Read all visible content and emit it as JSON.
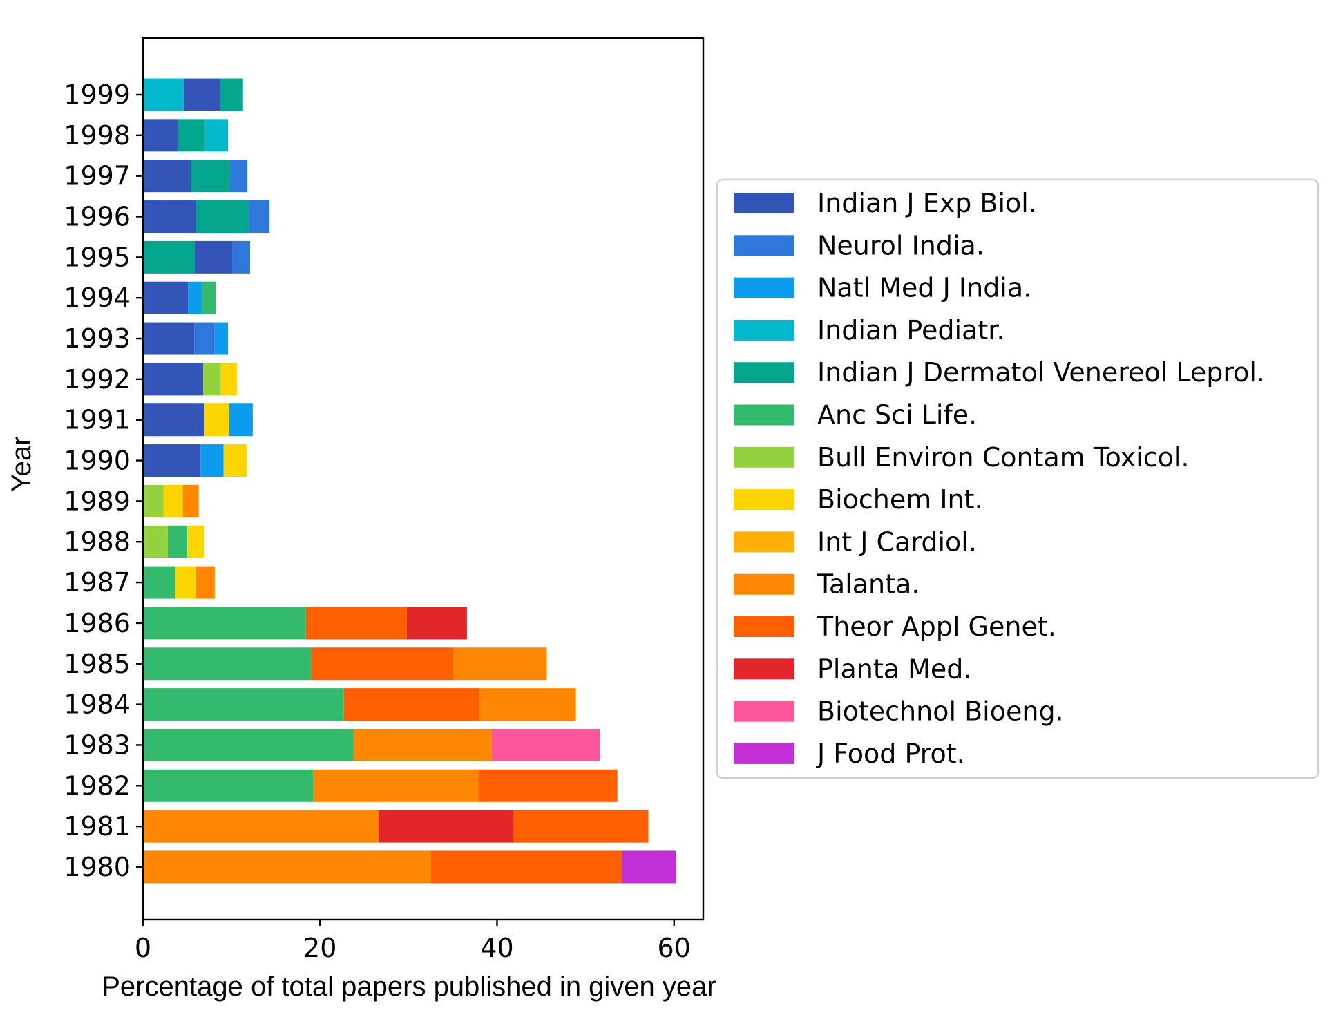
{
  "chart_data": {
    "type": "bar",
    "orientation": "horizontal",
    "stacked": true,
    "xlabel": "Percentage of total papers published in given year",
    "ylabel": "Year",
    "xlim": [
      0,
      63.3
    ],
    "xticks": [
      0,
      20,
      40,
      60
    ],
    "grid": false,
    "legend_position": "right",
    "journals": [
      {
        "name": "Indian J Exp Biol.",
        "color": "#3355b8"
      },
      {
        "name": "Neurol India.",
        "color": "#2f77db"
      },
      {
        "name": "Natl Med J India.",
        "color": "#0b9ced"
      },
      {
        "name": "Indian Pediatr.",
        "color": "#03b8cc"
      },
      {
        "name": "Indian J Dermatol Venereol Leprol.",
        "color": "#03a68d"
      },
      {
        "name": "Anc Sci Life.",
        "color": "#34ba6c"
      },
      {
        "name": "Bull Environ Contam Toxicol.",
        "color": "#94d13f"
      },
      {
        "name": "Biochem Int.",
        "color": "#fcd500"
      },
      {
        "name": "Int J Cardiol.",
        "color": "#fdaf03"
      },
      {
        "name": "Talanta.",
        "color": "#fd8603"
      },
      {
        "name": "Theor Appl Genet.",
        "color": "#fe5f03"
      },
      {
        "name": "Planta Med.",
        "color": "#e3262a"
      },
      {
        "name": "Biotechnol Bioeng.",
        "color": "#fe559b"
      },
      {
        "name": "J Food Prot.",
        "color": "#c22fd6"
      }
    ],
    "years": [
      {
        "year": "1999",
        "segments": [
          {
            "journal": 3,
            "value": 4.6
          },
          {
            "journal": 0,
            "value": 4.1
          },
          {
            "journal": 4,
            "value": 2.6
          }
        ]
      },
      {
        "year": "1998",
        "segments": [
          {
            "journal": 0,
            "value": 3.9
          },
          {
            "journal": 4,
            "value": 3.1
          },
          {
            "journal": 3,
            "value": 2.6
          }
        ]
      },
      {
        "year": "1997",
        "segments": [
          {
            "journal": 0,
            "value": 5.4
          },
          {
            "journal": 4,
            "value": 4.4
          },
          {
            "journal": 1,
            "value": 2.0
          }
        ]
      },
      {
        "year": "1996",
        "segments": [
          {
            "journal": 0,
            "value": 6.0
          },
          {
            "journal": 4,
            "value": 5.9
          },
          {
            "journal": 1,
            "value": 2.4
          }
        ]
      },
      {
        "year": "1995",
        "segments": [
          {
            "journal": 4,
            "value": 5.8
          },
          {
            "journal": 0,
            "value": 4.3
          },
          {
            "journal": 1,
            "value": 2.0
          }
        ]
      },
      {
        "year": "1994",
        "segments": [
          {
            "journal": 0,
            "value": 5.1
          },
          {
            "journal": 2,
            "value": 1.5
          },
          {
            "journal": 5,
            "value": 1.6
          }
        ]
      },
      {
        "year": "1993",
        "segments": [
          {
            "journal": 0,
            "value": 5.8
          },
          {
            "journal": 1,
            "value": 2.3
          },
          {
            "journal": 2,
            "value": 1.5
          }
        ]
      },
      {
        "year": "1992",
        "segments": [
          {
            "journal": 0,
            "value": 6.8
          },
          {
            "journal": 6,
            "value": 2.0
          },
          {
            "journal": 7,
            "value": 1.8
          }
        ]
      },
      {
        "year": "1991",
        "segments": [
          {
            "journal": 0,
            "value": 6.9
          },
          {
            "journal": 7,
            "value": 2.8
          },
          {
            "journal": 2,
            "value": 2.7
          }
        ]
      },
      {
        "year": "1990",
        "segments": [
          {
            "journal": 0,
            "value": 6.5
          },
          {
            "journal": 2,
            "value": 2.6
          },
          {
            "journal": 7,
            "value": 2.6
          }
        ]
      },
      {
        "year": "1989",
        "segments": [
          {
            "journal": 6,
            "value": 2.3
          },
          {
            "journal": 7,
            "value": 2.2
          },
          {
            "journal": 9,
            "value": 1.8
          }
        ]
      },
      {
        "year": "1988",
        "segments": [
          {
            "journal": 6,
            "value": 2.8
          },
          {
            "journal": 5,
            "value": 2.2
          },
          {
            "journal": 7,
            "value": 1.9
          }
        ]
      },
      {
        "year": "1987",
        "segments": [
          {
            "journal": 5,
            "value": 3.6
          },
          {
            "journal": 7,
            "value": 2.4
          },
          {
            "journal": 9,
            "value": 2.1
          }
        ]
      },
      {
        "year": "1986",
        "segments": [
          {
            "journal": 5,
            "value": 18.4
          },
          {
            "journal": 10,
            "value": 11.4
          },
          {
            "journal": 11,
            "value": 6.8
          }
        ]
      },
      {
        "year": "1985",
        "segments": [
          {
            "journal": 5,
            "value": 19.0
          },
          {
            "journal": 10,
            "value": 16.1
          },
          {
            "journal": 9,
            "value": 10.5
          }
        ]
      },
      {
        "year": "1984",
        "segments": [
          {
            "journal": 5,
            "value": 22.7
          },
          {
            "journal": 10,
            "value": 15.3
          },
          {
            "journal": 9,
            "value": 10.9
          }
        ]
      },
      {
        "year": "1983",
        "segments": [
          {
            "journal": 5,
            "value": 23.8
          },
          {
            "journal": 9,
            "value": 15.6
          },
          {
            "journal": 12,
            "value": 12.2
          }
        ]
      },
      {
        "year": "1982",
        "segments": [
          {
            "journal": 5,
            "value": 19.2
          },
          {
            "journal": 9,
            "value": 18.7
          },
          {
            "journal": 10,
            "value": 15.7
          }
        ]
      },
      {
        "year": "1981",
        "segments": [
          {
            "journal": 9,
            "value": 26.6
          },
          {
            "journal": 11,
            "value": 15.3
          },
          {
            "journal": 10,
            "value": 15.2
          }
        ]
      },
      {
        "year": "1980",
        "segments": [
          {
            "journal": 9,
            "value": 32.5
          },
          {
            "journal": 10,
            "value": 21.6
          },
          {
            "journal": 13,
            "value": 6.1
          }
        ]
      }
    ]
  }
}
